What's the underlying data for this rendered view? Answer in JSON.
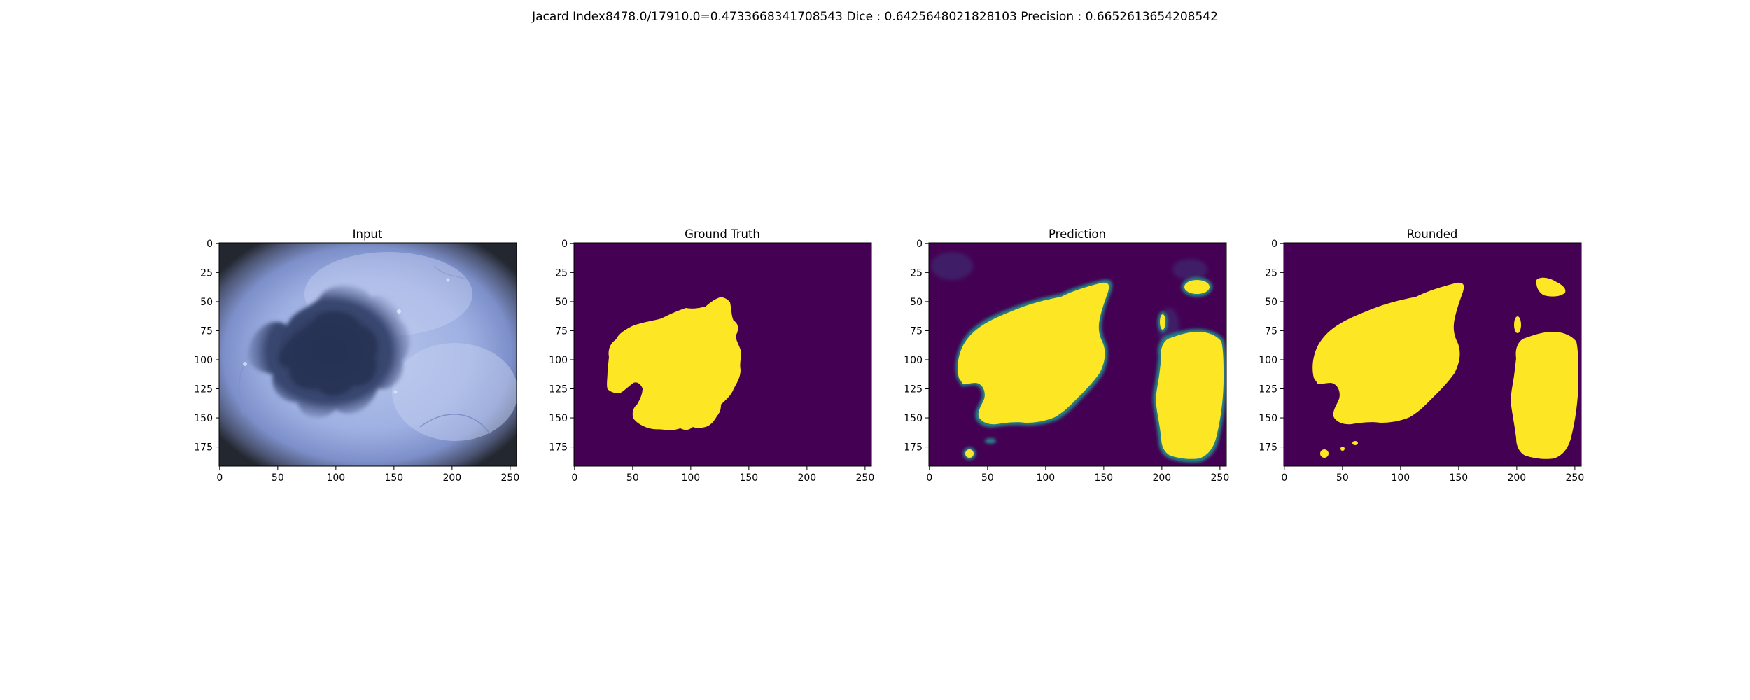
{
  "suptitle": "Jacard Index8478.0/17910.0=0.4733668341708543 Dice : 0.6425648021828103 Precision : 0.6652613654208542",
  "panels": [
    {
      "title": "Input",
      "kind": "photo"
    },
    {
      "title": "Ground Truth",
      "kind": "mask-gt"
    },
    {
      "title": "Prediction",
      "kind": "mask-pred"
    },
    {
      "title": "Rounded",
      "kind": "mask-round"
    }
  ],
  "x_ticks": [
    "0",
    "50",
    "100",
    "150",
    "200",
    "250"
  ],
  "y_ticks": [
    "0",
    "25",
    "50",
    "75",
    "100",
    "125",
    "150",
    "175"
  ],
  "x_tick_values": [
    0,
    50,
    100,
    150,
    200,
    250
  ],
  "y_tick_values": [
    0,
    25,
    50,
    75,
    100,
    125,
    150,
    175
  ],
  "image_width": 256,
  "image_height": 192,
  "colors": {
    "mask_background": "#440154",
    "mask_foreground": "#fde725",
    "mask_edge": "#21918c",
    "skin_light": "#b3c2ea",
    "skin_mid": "#8f9fd8",
    "lesion_dark": "#2e3a5c",
    "vignette": "#2a2f3a"
  }
}
